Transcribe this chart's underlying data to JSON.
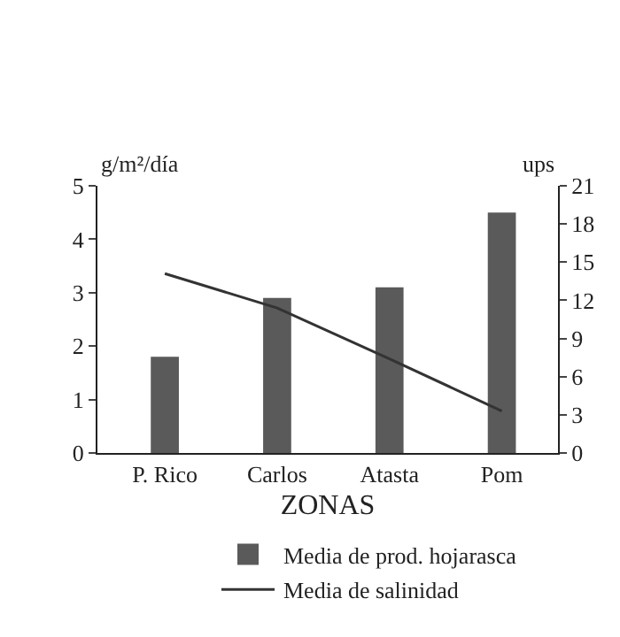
{
  "chart_data": {
    "type": "bar",
    "categories": [
      "P. Rico",
      "Carlos",
      "Atasta",
      "Pom"
    ],
    "xlabel": "ZONAS",
    "ylabel": "g/m²/día",
    "y2label": "ups",
    "series": [
      {
        "name": "Media de prod. hojarasca",
        "color": "#5a5a5a",
        "values": [
          1.8,
          2.9,
          3.1,
          4.5
        ]
      },
      {
        "name": "Media de salinidad",
        "type": "line",
        "axis": "y2",
        "color": "#333333",
        "values": [
          14.1,
          11.4,
          7.4,
          3.3
        ]
      }
    ],
    "ylim": [
      0,
      5
    ],
    "yticks": [
      0,
      1,
      2,
      3,
      4,
      5
    ],
    "y2lim": [
      0,
      21
    ],
    "y2ticks": [
      0,
      3,
      6,
      9,
      12,
      15,
      18,
      21
    ],
    "legend": "bottom",
    "marker": "none"
  }
}
